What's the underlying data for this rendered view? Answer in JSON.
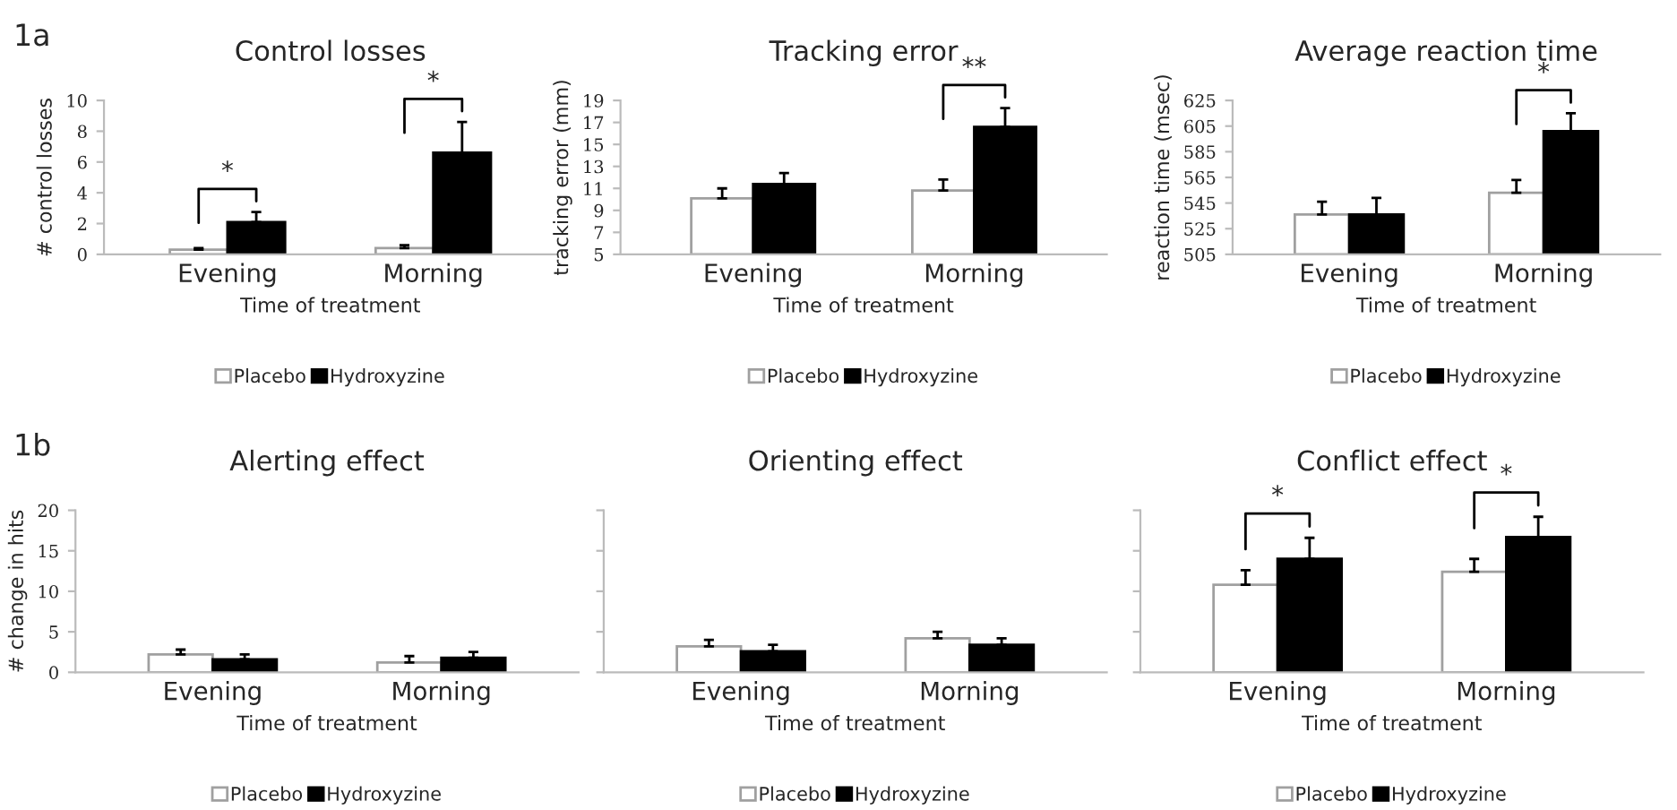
{
  "chart_data": [
    {
      "type": "bar",
      "title": "Control losses",
      "xlabel": "Time of treatment",
      "ylabel": "# control losses",
      "categories": [
        "Evening",
        "Morning"
      ],
      "ylim": [
        0,
        10
      ],
      "yticks": [
        0,
        2,
        4,
        6,
        8,
        10
      ],
      "legend": "bottom",
      "grid": false,
      "series": [
        {
          "name": "Placebo",
          "color": "#ffffff",
          "values": [
            0.3,
            0.4
          ],
          "errors": [
            [
              0.3,
              0.4
            ],
            [
              0.4,
              0.6
            ]
          ]
        },
        {
          "name": "Hydroxyzine",
          "color": "#000000",
          "values": [
            2.1,
            6.6
          ],
          "errors": [
            [
              2.1,
              2.75
            ],
            [
              6.6,
              8.6
            ]
          ]
        }
      ],
      "annotations": [
        "1a",
        "*",
        "*"
      ]
    },
    {
      "type": "bar",
      "title": "Tracking error",
      "xlabel": "Time of treatment",
      "ylabel": "tracking error (mm)",
      "categories": [
        "Evening",
        "Morning"
      ],
      "ylim": [
        5,
        19
      ],
      "yticks": [
        5,
        7,
        9,
        11,
        13,
        15,
        17,
        19
      ],
      "legend": "bottom",
      "grid": false,
      "series": [
        {
          "name": "Placebo",
          "color": "#ffffff",
          "values": [
            10.1,
            10.8
          ],
          "errors": [
            [
              10.1,
              11.0
            ],
            [
              10.8,
              11.8
            ]
          ]
        },
        {
          "name": "Hydroxyzine",
          "color": "#000000",
          "values": [
            11.4,
            16.6
          ],
          "errors": [
            [
              11.4,
              12.4
            ],
            [
              16.6,
              18.3
            ]
          ]
        }
      ],
      "annotations": [
        "**"
      ]
    },
    {
      "type": "bar",
      "title": "Average reaction time",
      "xlabel": "Time of treatment",
      "ylabel": "reaction time (msec)",
      "categories": [
        "Evening",
        "Morning"
      ],
      "ylim": [
        505,
        625
      ],
      "yticks": [
        505,
        525,
        545,
        565,
        585,
        605,
        625
      ],
      "legend": "bottom",
      "grid": false,
      "series": [
        {
          "name": "Placebo",
          "color": "#ffffff",
          "values": [
            536,
            553
          ],
          "errors": [
            [
              536,
              546
            ],
            [
              553,
              563
            ]
          ]
        },
        {
          "name": "Hydroxyzine",
          "color": "#000000",
          "values": [
            536,
            601
          ],
          "errors": [
            [
              536,
              549
            ],
            [
              601,
              615
            ]
          ]
        }
      ],
      "annotations": [
        "*"
      ]
    },
    {
      "type": "bar",
      "title": "Alerting effect",
      "xlabel": "Time of treatment",
      "ylabel": "# change in hits",
      "categories": [
        "Evening",
        "Morning"
      ],
      "ylim": [
        0,
        20
      ],
      "yticks": [
        0,
        5,
        10,
        15,
        20
      ],
      "legend": "bottom",
      "grid": false,
      "series": [
        {
          "name": "Placebo",
          "color": "#ffffff",
          "values": [
            2.2,
            1.2
          ],
          "errors": [
            [
              2.2,
              2.8
            ],
            [
              1.2,
              2.0
            ]
          ]
        },
        {
          "name": "Hydroxyzine",
          "color": "#000000",
          "values": [
            1.6,
            1.8
          ],
          "errors": [
            [
              1.6,
              2.2
            ],
            [
              1.8,
              2.5
            ]
          ]
        }
      ],
      "annotations": [
        "1b"
      ]
    },
    {
      "type": "bar",
      "title": "Orienting effect",
      "xlabel": "Time of treatment",
      "categories": [
        "Evening",
        "Morning"
      ],
      "ylim": [
        0,
        20
      ],
      "yticks": [
        0,
        5,
        10,
        15,
        20
      ],
      "tick_labels": "x",
      "legend": "bottom",
      "grid": false,
      "series": [
        {
          "name": "Placebo",
          "color": "#ffffff",
          "values": [
            3.2,
            4.2
          ],
          "errors": [
            [
              3.2,
              4.0
            ],
            [
              4.2,
              5.0
            ]
          ]
        },
        {
          "name": "Hydroxyzine",
          "color": "#000000",
          "values": [
            2.6,
            3.4
          ],
          "errors": [
            [
              2.6,
              3.4
            ],
            [
              3.4,
              4.2
            ]
          ]
        }
      ]
    },
    {
      "type": "bar",
      "title": "Conflict effect",
      "xlabel": "Time of treatment",
      "categories": [
        "Evening",
        "Morning"
      ],
      "ylim": [
        0,
        20
      ],
      "yticks": [
        0,
        5,
        10,
        15,
        20
      ],
      "tick_labels": "x",
      "legend": "bottom",
      "grid": false,
      "series": [
        {
          "name": "Placebo",
          "color": "#ffffff",
          "values": [
            10.8,
            12.4
          ],
          "errors": [
            [
              10.8,
              12.6
            ],
            [
              12.4,
              14.0
            ]
          ]
        },
        {
          "name": "Hydroxyzine",
          "color": "#000000",
          "values": [
            14.0,
            16.7
          ],
          "errors": [
            [
              14.0,
              16.6
            ],
            [
              16.7,
              19.2
            ]
          ]
        }
      ],
      "annotations": [
        "*",
        "*"
      ]
    }
  ]
}
